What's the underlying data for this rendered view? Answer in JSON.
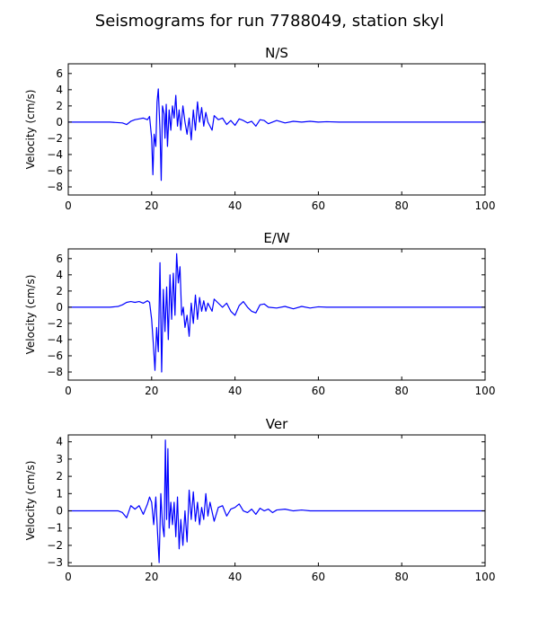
{
  "figure": {
    "title": "Seismograms for run 7788049, station skyl"
  },
  "chart_data": [
    {
      "type": "line",
      "title": "N/S",
      "xlabel": "",
      "ylabel": "Velocity (cm/s)",
      "xlim": [
        0,
        100
      ],
      "ylim": [
        -9,
        7.2
      ],
      "xticks": [
        0,
        20,
        40,
        60,
        80,
        100
      ],
      "yticks": [
        -8,
        -6,
        -4,
        -2,
        0,
        2,
        4,
        6
      ],
      "grid": false,
      "color": "#0000ff",
      "x": [
        0,
        5,
        10,
        13,
        14,
        15,
        16,
        17,
        18,
        19,
        19.5,
        20,
        20.3,
        20.6,
        21,
        21.3,
        21.6,
        22,
        22.3,
        22.6,
        23,
        23.2,
        23.5,
        23.8,
        24.2,
        24.6,
        25,
        25.4,
        25.8,
        26.2,
        26.6,
        27,
        27.5,
        28,
        28.5,
        29,
        29.5,
        30,
        30.5,
        31,
        31.5,
        32,
        32.5,
        33,
        33.5,
        34,
        34.5,
        35,
        36,
        37,
        38,
        39,
        40,
        41,
        42,
        43,
        44,
        45,
        46,
        47,
        48,
        50,
        52,
        54,
        56,
        58,
        60,
        62,
        65,
        70,
        80,
        90,
        100
      ],
      "y": [
        0,
        0,
        0,
        -0.1,
        -0.3,
        0.1,
        0.3,
        0.4,
        0.5,
        0.3,
        0.7,
        -2,
        -6.5,
        -1.5,
        -3,
        2.5,
        4.1,
        -1,
        -7.2,
        2,
        1,
        -2,
        2.2,
        -3,
        1.5,
        -1,
        2,
        0.5,
        3.3,
        -0.5,
        1.5,
        -1,
        2,
        0,
        -1.5,
        0.5,
        -2.2,
        1.5,
        -1,
        2.5,
        0,
        1.8,
        -0.5,
        1.2,
        0,
        -0.5,
        -1,
        0.8,
        0.3,
        0.5,
        -0.3,
        0.2,
        -0.4,
        0.4,
        0.2,
        -0.1,
        0.1,
        -0.5,
        0.3,
        0.2,
        -0.2,
        0.2,
        -0.1,
        0.1,
        0,
        0.1,
        0,
        0.05,
        0,
        0,
        0,
        0,
        0
      ]
    },
    {
      "type": "line",
      "title": "E/W",
      "xlabel": "",
      "ylabel": "Velocity (cm/s)",
      "xlim": [
        0,
        100
      ],
      "ylim": [
        -9,
        7.2
      ],
      "xticks": [
        0,
        20,
        40,
        60,
        80,
        100
      ],
      "yticks": [
        -8,
        -6,
        -4,
        -2,
        0,
        2,
        4,
        6
      ],
      "grid": false,
      "color": "#0000ff",
      "x": [
        0,
        5,
        10,
        12,
        13,
        14,
        15,
        16,
        17,
        18,
        19,
        19.5,
        20,
        20.4,
        20.8,
        21.2,
        21.6,
        22,
        22.4,
        22.8,
        23.2,
        23.6,
        24,
        24.4,
        24.8,
        25.2,
        25.6,
        26,
        26.4,
        26.8,
        27.2,
        27.6,
        28,
        28.5,
        29,
        29.5,
        30,
        30.5,
        31,
        31.5,
        32,
        32.5,
        33,
        33.5,
        34,
        34.5,
        35,
        36,
        37,
        38,
        39,
        40,
        41,
        42,
        43,
        44,
        45,
        46,
        47,
        48,
        50,
        52,
        54,
        56,
        58,
        60,
        62,
        65,
        70,
        80,
        90,
        100
      ],
      "y": [
        0,
        0,
        0,
        0.1,
        0.3,
        0.6,
        0.7,
        0.6,
        0.7,
        0.5,
        0.8,
        0.6,
        -1.5,
        -4.5,
        -7.8,
        -2.5,
        -5.5,
        5.5,
        -8,
        2.2,
        -3,
        2.5,
        -4,
        4,
        -1.5,
        4.2,
        -1,
        6.6,
        3,
        5,
        -1,
        0,
        -2.5,
        -1,
        -3.6,
        0.5,
        -2,
        1.5,
        -1.5,
        1.2,
        -0.5,
        0.8,
        -0.5,
        0.5,
        0,
        -0.5,
        1,
        0.5,
        0,
        0.5,
        -0.5,
        -1,
        0.2,
        0.7,
        0,
        -0.5,
        -0.7,
        0.3,
        0.4,
        0,
        -0.1,
        0.1,
        -0.2,
        0.1,
        -0.1,
        0.05,
        0,
        0,
        0,
        0,
        0,
        0
      ]
    },
    {
      "type": "line",
      "title": "Ver",
      "xlabel": "",
      "ylabel": "Velocity (cm/s)",
      "xlim": [
        0,
        100
      ],
      "ylim": [
        -3.2,
        4.4
      ],
      "xticks": [
        0,
        20,
        40,
        60,
        80,
        100
      ],
      "yticks": [
        -3,
        -2,
        -1,
        0,
        1,
        2,
        3,
        4
      ],
      "grid": false,
      "color": "#0000ff",
      "x": [
        0,
        5,
        10,
        12,
        13,
        14,
        15,
        16,
        17,
        18,
        19,
        19.5,
        20,
        20.5,
        21,
        21.4,
        21.8,
        22.2,
        22.6,
        23,
        23.3,
        23.6,
        23.9,
        24.2,
        24.6,
        25,
        25.4,
        25.8,
        26.2,
        26.6,
        27,
        27.5,
        28,
        28.5,
        29,
        29.5,
        30,
        30.5,
        31,
        31.5,
        32,
        32.5,
        33,
        33.5,
        34,
        35,
        36,
        37,
        38,
        39,
        40,
        41,
        42,
        43,
        44,
        45,
        46,
        47,
        48,
        49,
        50,
        52,
        54,
        56,
        58,
        60,
        62,
        65,
        70,
        80,
        90,
        100
      ],
      "y": [
        0,
        0,
        0,
        0,
        -0.1,
        -0.4,
        0.3,
        0.1,
        0.3,
        -0.2,
        0.4,
        0.8,
        0.5,
        -0.8,
        0.8,
        -1.2,
        -3,
        1,
        -0.8,
        -1.5,
        4.1,
        -0.5,
        3.6,
        -1,
        0.5,
        -0.8,
        0.5,
        -1.5,
        0.8,
        -2.2,
        -0.5,
        -2,
        0,
        -1.8,
        1.2,
        -0.5,
        1.1,
        -0.6,
        0.5,
        -0.8,
        0.2,
        -0.5,
        1,
        -0.3,
        0.5,
        -0.6,
        0.2,
        0.3,
        -0.3,
        0.1,
        0.2,
        0.4,
        0,
        -0.1,
        0.1,
        -0.2,
        0.15,
        0,
        0.1,
        -0.1,
        0.05,
        0.1,
        0,
        0.05,
        0,
        0,
        0,
        0,
        0,
        0,
        0,
        0
      ]
    }
  ]
}
